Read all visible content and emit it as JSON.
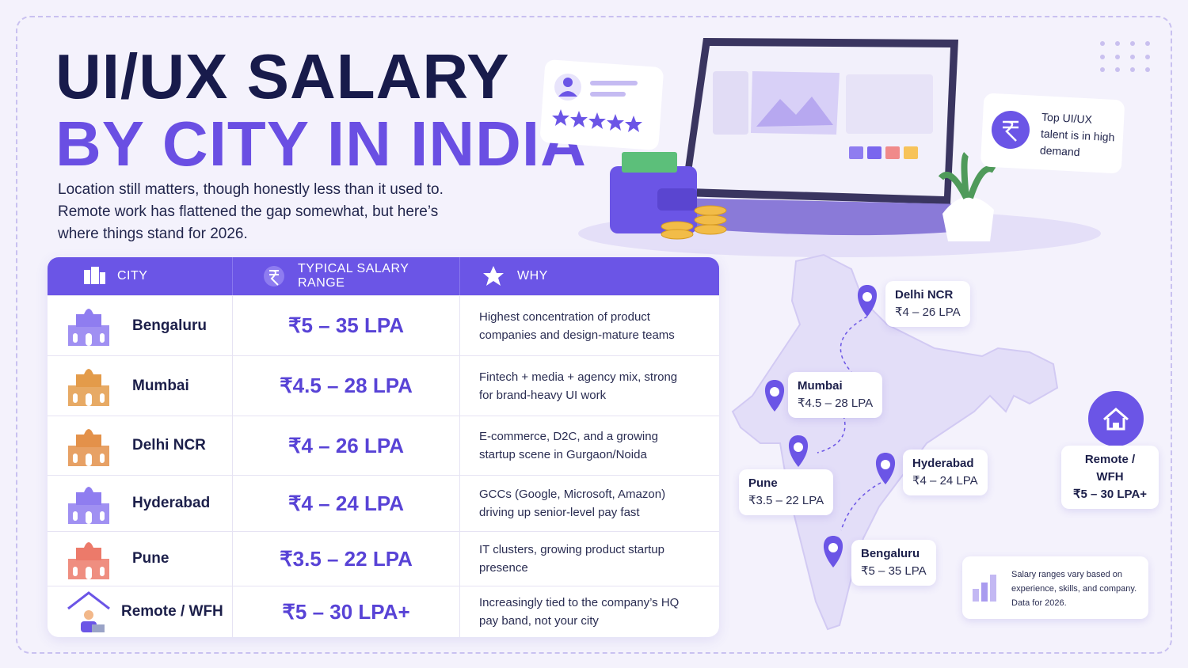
{
  "header": {
    "title_line1": "UI/UX SALARY",
    "title_line2": "BY CITY IN INDIA",
    "intro": "Location still matters, though honestly less than it used to. Remote work has flattened the gap somewhat, but here’s where things stand for 2026."
  },
  "table": {
    "headers": [
      "CITY",
      "TYPICAL SALARY RANGE",
      "WHY"
    ],
    "rows": [
      [
        "Bengaluru",
        "₹5 – 35 LPA",
        "Highest concentration of product companies and design-mature teams"
      ],
      [
        "Mumbai",
        "₹4.5 – 28 LPA",
        "Fintech + media + agency mix, strong for brand-heavy UI work"
      ],
      [
        "Delhi NCR",
        "₹4 – 26 LPA",
        "E-commerce, D2C, and a growing startup scene in Gurgaon/Noida"
      ],
      [
        "Hyderabad",
        "₹4 – 24 LPA",
        "GCCs (Google, Microsoft, Amazon) driving up senior-level pay fast"
      ],
      [
        "Pune",
        "₹3.5 – 22 LPA",
        "IT clusters, growing product startup presence"
      ],
      [
        "Remote / WFH",
        "₹5 – 30 LPA+",
        "Increasingly tied to the company’s HQ pay band, not your city"
      ]
    ]
  },
  "callout": "Top UI/UX talent is in high demand",
  "map": {
    "pins": [
      {
        "name": "Delhi NCR",
        "salary": "₹4 – 26 LPA"
      },
      {
        "name": "Mumbai",
        "salary": "₹4.5 – 28 LPA"
      },
      {
        "name": "Pune",
        "salary": "₹3.5 – 22 LPA"
      },
      {
        "name": "Hyderabad",
        "salary": "₹4 – 24 LPA"
      },
      {
        "name": "Bengaluru",
        "salary": "₹5 – 35 LPA"
      }
    ],
    "remote": {
      "name": "Remote / WFH",
      "salary": "₹5 – 30 LPA+"
    }
  },
  "note": "Salary ranges vary based on experience, skills, and company. Data for 2026."
}
